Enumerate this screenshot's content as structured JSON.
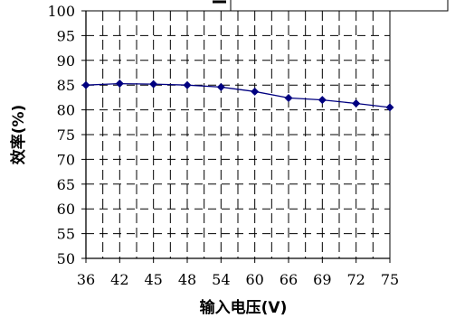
{
  "chart_data": {
    "type": "line",
    "title": "",
    "xlabel": "输入电压(V)",
    "ylabel": "效率(%)",
    "categories": [
      "36",
      "42",
      "45",
      "48",
      "54",
      "60",
      "66",
      "69",
      "72",
      "75"
    ],
    "series": [
      {
        "values": [
          85.0,
          85.3,
          85.2,
          85.0,
          84.6,
          83.7,
          82.4,
          82.0,
          81.3,
          80.5
        ]
      }
    ],
    "ylim": [
      50,
      100
    ],
    "yticks": [
      "50",
      "55",
      "60",
      "65",
      "70",
      "75",
      "80",
      "85",
      "90",
      "95",
      "100"
    ],
    "grid": true,
    "colors": {
      "series": "#000080",
      "axis": "#000000",
      "grid": "#000000"
    }
  }
}
